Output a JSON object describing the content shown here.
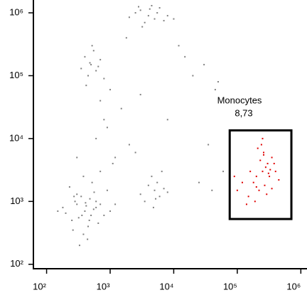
{
  "chart_data": {
    "type": "scatter",
    "log_x": true,
    "log_y": true,
    "xlim": [
      62,
      1250000
    ],
    "ylim": [
      85,
      1600000
    ],
    "xticks": [
      {
        "value": 100,
        "label": "10²"
      },
      {
        "value": 1000,
        "label": "10³"
      },
      {
        "value": 10000,
        "label": "10⁴"
      },
      {
        "value": 100000,
        "label": "10⁵"
      },
      {
        "value": 1000000,
        "label": "10⁶"
      }
    ],
    "yticks": [
      {
        "value": 100,
        "label": "10²"
      },
      {
        "value": 1000,
        "label": "10³"
      },
      {
        "value": 10000,
        "label": "10⁴"
      },
      {
        "value": 100000,
        "label": "10⁵"
      },
      {
        "value": 1000000,
        "label": "10⁶"
      }
    ],
    "series": [
      {
        "color": "#808080",
        "x": [
          400,
          300,
          500,
          250,
          600,
          350,
          450,
          200,
          700,
          380,
          280,
          550,
          320,
          900,
          420,
          180,
          650,
          480,
          260,
          360,
          520,
          150,
          800,
          440,
          300,
          600,
          1200,
          230,
          380,
          470,
          330,
          560,
          270,
          410,
          1000,
          500,
          400,
          600,
          450,
          700,
          350,
          550,
          800,
          480,
          420,
          650,
          520,
          4000,
          3000,
          5000,
          2500,
          6000,
          3500,
          4500,
          8000,
          2000,
          5500,
          3200,
          7000,
          4200,
          2800,
          10000,
          5000,
          4000,
          6000,
          4500,
          7000,
          3500,
          5500,
          8000,
          4800,
          3000,
          6500,
          5200,
          800,
          1500,
          2000,
          600,
          1200,
          3000,
          900,
          700,
          15000,
          20000,
          30000,
          50000,
          40000,
          12000,
          1800,
          2500,
          1000,
          60000,
          25000,
          8000,
          700,
          1100,
          35000,
          45000,
          300
        ],
        "y": [
          700,
          900,
          600,
          500,
          800,
          1200,
          400,
          650,
          900,
          300,
          1000,
          750,
          550,
          1500,
          850,
          800,
          450,
          1100,
          350,
          600,
          2000,
          700,
          600,
          250,
          1300,
          1000,
          900,
          1700,
          2500,
          500,
          200,
          1400,
          1200,
          950,
          700,
          150000,
          200000,
          120000,
          100000,
          180000,
          130000,
          250000,
          90000,
          160000,
          70000,
          140000,
          300000,
          900000,
          1100000,
          800000,
          1000000,
          1200000,
          700000,
          1300000,
          900000,
          850000,
          1000000,
          600000,
          750000,
          1150000,
          1250000,
          800000,
          1500,
          1800,
          1200,
          2500,
          1600,
          1000,
          2000,
          1400,
          800,
          1300,
          3000,
          1100,
          20000,
          30000,
          8000,
          10000,
          5000,
          50000,
          15000,
          3000,
          200000,
          100000,
          150000,
          80000,
          1500,
          300000,
          400000,
          6000,
          60000,
          3000,
          2000,
          20000,
          40000,
          4000,
          8000,
          60000,
          5000
        ]
      },
      {
        "color": "#e00000",
        "x": [
          250000,
          200000,
          300000,
          180000,
          350000,
          220000,
          280000,
          150000,
          400000,
          260000,
          120000,
          320000,
          240000,
          190000,
          450000,
          230000,
          270000,
          100000,
          330000,
          210000,
          290000,
          160000,
          380000,
          250000,
          310000,
          140000,
          260000,
          200000,
          350000,
          90000
        ],
        "y": [
          3000,
          2500,
          4000,
          2000,
          5000,
          1500,
          3500,
          1200,
          3000,
          6000,
          2000,
          2500,
          8000,
          1000,
          2200,
          4500,
          1800,
          1500,
          3200,
          7000,
          1300,
          3000,
          4000,
          10000,
          2800,
          900,
          5500,
          1700,
          1600,
          2500
        ]
      }
    ],
    "gate": {
      "name": "Monocytes",
      "percent_label": "8,73",
      "x": [
        76000,
        710000
      ],
      "y": [
        525,
        13500
      ]
    }
  }
}
